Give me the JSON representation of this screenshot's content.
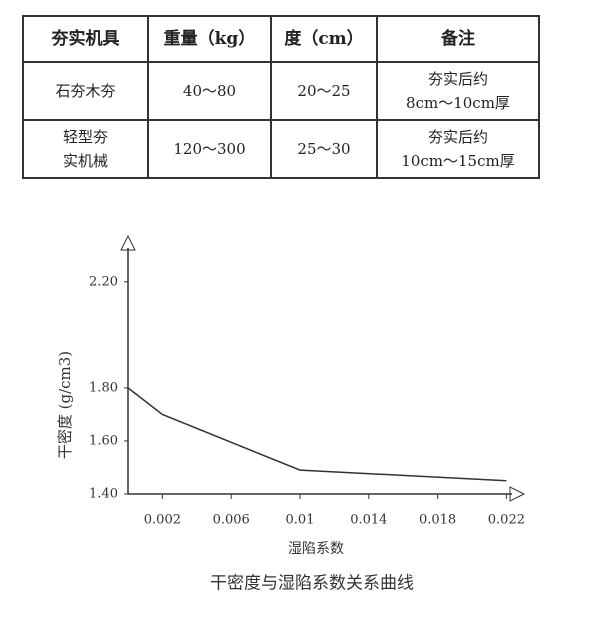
{
  "table": {
    "header": [
      "夯实机具",
      "重量（kg）",
      "度（cm）",
      "备注"
    ],
    "rows": [
      [
        [
          "石夯木夯"
        ],
        [
          "40～80"
        ],
        [
          "20～25"
        ],
        [
          "夯实后约",
          "8cm～10cm厚"
        ]
      ],
      [
        [
          "轻型夯",
          "实机械"
        ],
        [
          "120～300"
        ],
        [
          "25～30"
        ],
        [
          "夯实后约",
          "10cm～15cm厚"
        ]
      ]
    ]
  },
  "chart_data": {
    "type": "line",
    "y_label": "干密度 (g/cm3)",
    "x_label": "湿陷系数",
    "caption": "干密度与湿陷系数关系曲线",
    "x": [
      0,
      0.002,
      0.01,
      0.022
    ],
    "series": [
      {
        "name": "干密度",
        "color": "#333333",
        "values": [
          1.8,
          1.7,
          1.49,
          1.45
        ]
      }
    ],
    "xlim": [
      0,
      0.0225
    ],
    "xticks": [
      0.002,
      0.006,
      0.01,
      0.014,
      0.018,
      0.022
    ],
    "ylim": [
      1.4,
      2.35
    ],
    "yticks": [
      {
        "value": 1.4,
        "label": "1.40"
      },
      {
        "value": 1.6,
        "label": "1.60"
      },
      {
        "value": 1.8,
        "label": "1.80"
      },
      {
        "value": 2.2,
        "label": "2.20"
      }
    ]
  }
}
